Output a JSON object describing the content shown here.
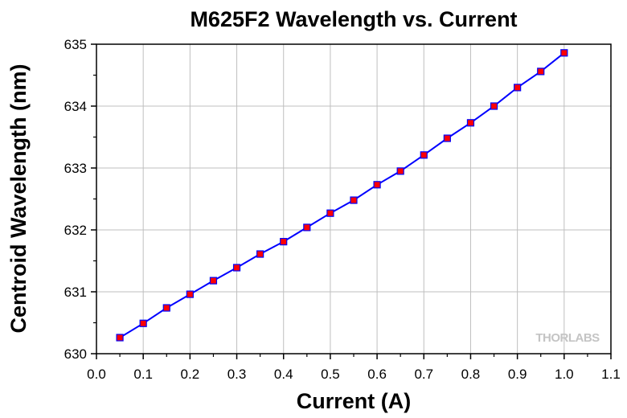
{
  "chart_data": {
    "type": "line",
    "title": "M625F2 Wavelength vs. Current",
    "xlabel": "Current (A)",
    "ylabel": "Centroid Wavelength (nm)",
    "xlim": [
      0.0,
      1.1
    ],
    "ylim": [
      630,
      635
    ],
    "x_ticks": [
      "0.0",
      "0.1",
      "0.2",
      "0.3",
      "0.4",
      "0.5",
      "0.6",
      "0.7",
      "0.8",
      "0.9",
      "1.0",
      "1.1"
    ],
    "y_ticks": [
      "630",
      "631",
      "632",
      "633",
      "634",
      "635"
    ],
    "grid": true,
    "legend": "none",
    "line_color": "#0000ff",
    "marker_color": "#ff0000",
    "series": [
      {
        "x": [
          0.05,
          0.1,
          0.15,
          0.2,
          0.25,
          0.3,
          0.35,
          0.4,
          0.45,
          0.5,
          0.55,
          0.6,
          0.65,
          0.7,
          0.75,
          0.8,
          0.85,
          0.9,
          0.95,
          1.0
        ],
        "y": [
          630.26,
          630.49,
          630.74,
          630.96,
          631.18,
          631.39,
          631.61,
          631.81,
          632.04,
          632.27,
          632.48,
          632.73,
          632.95,
          633.21,
          633.48,
          633.73,
          634.0,
          634.3,
          634.56,
          634.86
        ]
      }
    ]
  },
  "watermark": {
    "text": "THORLABS"
  }
}
